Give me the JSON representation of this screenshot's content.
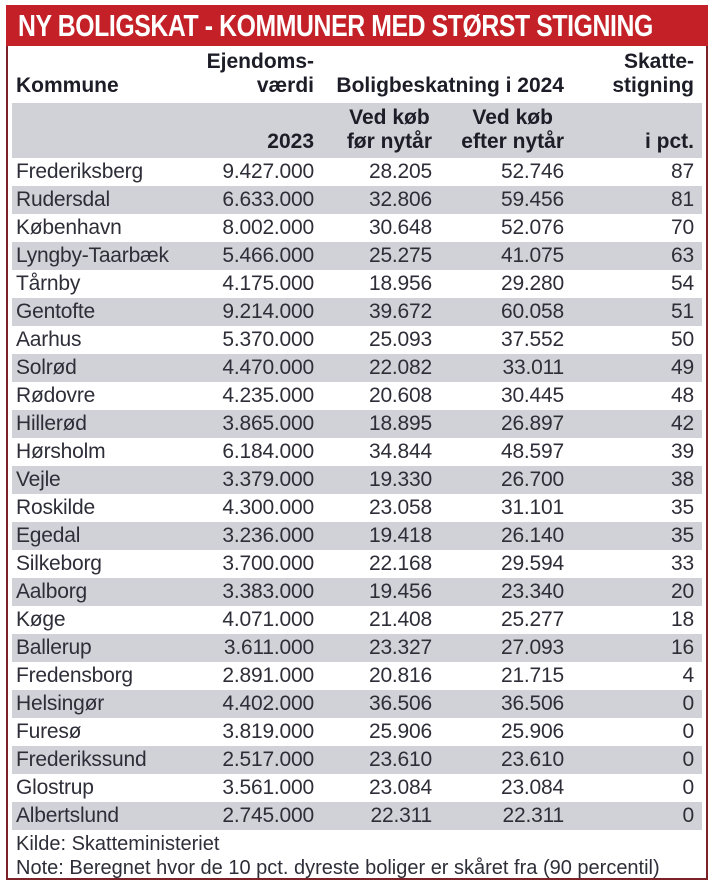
{
  "title_bar": {
    "title": "NY BOLIGSKAT - KOMMUNER MED STØRST STIGNING"
  },
  "header": {
    "kommune": "Kommune",
    "ejendoms_line1": "Ejendoms-",
    "ejendoms_line2": "værdi",
    "bolig_2024": "Boligbeskatning i 2024",
    "skatte_line1": "Skatte-",
    "skatte_line2": "stigning",
    "sub_2023": "2023",
    "sub_foer_l1": "Ved køb",
    "sub_foer_l2": "før nytår",
    "sub_efter_l1": "Ved køb",
    "sub_efter_l2": "efter nytår",
    "sub_pct": "i pct."
  },
  "chart_data": {
    "type": "table",
    "title": "NY BOLIGSKAT - KOMMUNER MED STØRST STIGNING",
    "columns": [
      "Kommune",
      "Ejendomsværdi 2023",
      "Boligbeskatning i 2024 - Ved køb før nytår",
      "Boligbeskatning i 2024 - Ved køb efter nytår",
      "Skattestigning i pct."
    ],
    "rows": [
      [
        "Frederiksberg",
        "9.427.000",
        "28.205",
        "52.746",
        "87"
      ],
      [
        "Rudersdal",
        "6.633.000",
        "32.806",
        "59.456",
        "81"
      ],
      [
        "København",
        "8.002.000",
        "30.648",
        "52.076",
        "70"
      ],
      [
        "Lyngby-Taarbæk",
        "5.466.000",
        "25.275",
        "41.075",
        "63"
      ],
      [
        "Tårnby",
        "4.175.000",
        "18.956",
        "29.280",
        "54"
      ],
      [
        "Gentofte",
        "9.214.000",
        "39.672",
        "60.058",
        "51"
      ],
      [
        "Aarhus",
        "5.370.000",
        "25.093",
        "37.552",
        "50"
      ],
      [
        "Solrød",
        "4.470.000",
        "22.082",
        "33.011",
        "49"
      ],
      [
        "Rødovre",
        "4.235.000",
        "20.608",
        "30.445",
        "48"
      ],
      [
        "Hillerød",
        "3.865.000",
        "18.895",
        "26.897",
        "42"
      ],
      [
        "Hørsholm",
        "6.184.000",
        "34.844",
        "48.597",
        "39"
      ],
      [
        "Vejle",
        "3.379.000",
        "19.330",
        "26.700",
        "38"
      ],
      [
        "Roskilde",
        "4.300.000",
        "23.058",
        "31.101",
        "35"
      ],
      [
        "Egedal",
        "3.236.000",
        "19.418",
        "26.140",
        "35"
      ],
      [
        "Silkeborg",
        "3.700.000",
        "22.168",
        "29.594",
        "33"
      ],
      [
        "Aalborg",
        "3.383.000",
        "19.456",
        "23.340",
        "20"
      ],
      [
        "Køge",
        "4.071.000",
        "21.408",
        "25.277",
        "18"
      ],
      [
        "Ballerup",
        "3.611.000",
        "23.327",
        "27.093",
        "16"
      ],
      [
        "Fredensborg",
        "2.891.000",
        "20.816",
        "21.715",
        "4"
      ],
      [
        "Helsingør",
        "4.402.000",
        "36.506",
        "36.506",
        "0"
      ],
      [
        "Furesø",
        "3.819.000",
        "25.906",
        "25.906",
        "0"
      ],
      [
        "Frederikssund",
        "2.517.000",
        "23.610",
        "23.610",
        "0"
      ],
      [
        "Glostrup",
        "3.561.000",
        "23.084",
        "23.084",
        "0"
      ],
      [
        "Albertslund",
        "2.745.000",
        "22.311",
        "22.311",
        "0"
      ]
    ]
  },
  "footer": {
    "kilde": "Kilde: Skatteministeriet",
    "note": "Note: Beregnet hvor de 10 pct. dyreste boliger er skåret fra (90 percentil)"
  },
  "colors": {
    "accent_red": "#c32127",
    "border_maroon": "#7c2127",
    "stripe_gray": "#d0d2d7",
    "text_dark": "#2e2e38"
  }
}
